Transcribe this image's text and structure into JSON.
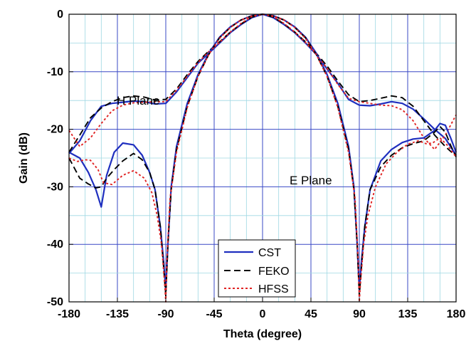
{
  "chart_data": {
    "type": "line",
    "title": "",
    "xlabel": "Theta (degree)",
    "ylabel": "Gain (dB)",
    "xlim": [
      -180,
      180
    ],
    "ylim": [
      -50,
      0
    ],
    "xticks": [
      -180,
      -135,
      -90,
      -45,
      0,
      45,
      90,
      135,
      180
    ],
    "yticks": [
      0,
      -10,
      -20,
      -30,
      -40,
      -50
    ],
    "xtick_labels": [
      "-180",
      "-135",
      "-90",
      "-45",
      "0",
      "45",
      "90",
      "135",
      "180"
    ],
    "ytick_labels": [
      "0",
      "-10",
      "-20",
      "-30",
      "-40",
      "-50"
    ],
    "grid": true,
    "legend_position": "bottom-center",
    "annotations": [
      "H Plane",
      "E Plane"
    ],
    "series": [
      {
        "name": "CST",
        "plane": "H Plane",
        "color": "#1f2fbf",
        "style": "solid",
        "x": [
          -180,
          -170,
          -160,
          -150,
          -140,
          -130,
          -120,
          -110,
          -100,
          -90,
          -80,
          -70,
          -60,
          -50,
          -40,
          -30,
          -20,
          -10,
          0,
          10,
          20,
          30,
          40,
          50,
          60,
          70,
          80,
          90,
          100,
          110,
          120,
          130,
          140,
          150,
          160,
          170,
          180
        ],
        "y": [
          -24.2,
          -22,
          -18.5,
          -16,
          -15.5,
          -15.3,
          -15.1,
          -15.2,
          -15.6,
          -15.5,
          -13.5,
          -11,
          -8.5,
          -6.8,
          -5,
          -3.2,
          -1.8,
          -0.6,
          0,
          -0.6,
          -1.8,
          -3.2,
          -5,
          -7,
          -9.5,
          -12,
          -14.8,
          -15.8,
          -15.9,
          -15.6,
          -15.2,
          -15.5,
          -16.5,
          -18.2,
          -20,
          -21.6,
          -24.5
        ]
      },
      {
        "name": "FEKO",
        "plane": "H Plane",
        "color": "#000000",
        "style": "dashed",
        "x": [
          -180,
          -170,
          -160,
          -150,
          -140,
          -130,
          -120,
          -110,
          -100,
          -90,
          -80,
          -70,
          -60,
          -50,
          -40,
          -30,
          -20,
          -10,
          0,
          10,
          20,
          30,
          40,
          50,
          60,
          70,
          80,
          90,
          100,
          110,
          120,
          130,
          140,
          150,
          160,
          170,
          180
        ],
        "y": [
          -24,
          -21,
          -18,
          -16.3,
          -15.2,
          -14.5,
          -14.2,
          -14.4,
          -14.9,
          -14.8,
          -13,
          -10.5,
          -8.2,
          -6.4,
          -4.8,
          -3.1,
          -1.7,
          -0.5,
          0,
          -0.5,
          -1.7,
          -3.1,
          -4.8,
          -6.8,
          -9,
          -11.6,
          -14,
          -15.2,
          -15,
          -14.6,
          -14.2,
          -14.5,
          -16,
          -18.5,
          -21,
          -23,
          -24.7
        ]
      },
      {
        "name": "HFSS",
        "plane": "H Plane",
        "color": "#e02424",
        "style": "dotted",
        "x": [
          -180,
          -170,
          -160,
          -150,
          -140,
          -130,
          -120,
          -110,
          -100,
          -90,
          -80,
          -70,
          -60,
          -50,
          -40,
          -30,
          -20,
          -10,
          0,
          10,
          20,
          30,
          40,
          50,
          60,
          70,
          80,
          90,
          100,
          110,
          120,
          130,
          140,
          150,
          160,
          170,
          180
        ],
        "y": [
          -20.2,
          -23,
          -21.5,
          -19,
          -16.8,
          -15.8,
          -15.4,
          -15.3,
          -15.2,
          -15.2,
          -13.2,
          -10.8,
          -8.4,
          -6.5,
          -4.9,
          -3.1,
          -1.6,
          -0.4,
          0,
          -0.4,
          -1.6,
          -3.1,
          -4.9,
          -7,
          -9.4,
          -12.2,
          -14.6,
          -15.2,
          -15.5,
          -15.8,
          -15.9,
          -16.6,
          -18.5,
          -21.5,
          -23.5,
          -21,
          -17.5
        ]
      },
      {
        "name": "CST",
        "plane": "E Plane",
        "color": "#1f2fbf",
        "style": "solid",
        "x": [
          -180,
          -170,
          -162,
          -155,
          -150,
          -145,
          -138,
          -130,
          -120,
          -112,
          -105,
          -100,
          -95,
          -92,
          -90,
          -88,
          -85,
          -80,
          -70,
          -60,
          -50,
          -40,
          -30,
          -20,
          -10,
          0,
          10,
          20,
          30,
          40,
          50,
          60,
          70,
          80,
          85,
          88,
          90,
          92,
          95,
          100,
          110,
          120,
          130,
          140,
          150,
          160,
          165,
          170,
          175,
          180
        ],
        "y": [
          -24,
          -25,
          -27.5,
          -30.5,
          -33.5,
          -28,
          -24,
          -22.4,
          -22.7,
          -24.5,
          -27.5,
          -30.5,
          -37,
          -43,
          -48,
          -40,
          -30,
          -23,
          -15.5,
          -10.5,
          -6.8,
          -4,
          -2.2,
          -1,
          -0.25,
          0,
          -0.25,
          -1,
          -2.2,
          -4,
          -6.8,
          -10.5,
          -15.5,
          -23,
          -30,
          -40,
          -48,
          -43,
          -37,
          -30.5,
          -25.5,
          -23.5,
          -22.3,
          -21.7,
          -21.5,
          -20.2,
          -19,
          -19.3,
          -21.5,
          -24
        ]
      },
      {
        "name": "FEKO",
        "plane": "E Plane",
        "color": "#000000",
        "style": "dashed",
        "x": [
          -180,
          -170,
          -162,
          -155,
          -150,
          -145,
          -138,
          -130,
          -120,
          -112,
          -105,
          -100,
          -95,
          -92,
          -90,
          -88,
          -85,
          -80,
          -70,
          -60,
          -50,
          -40,
          -30,
          -20,
          -10,
          0,
          10,
          20,
          30,
          40,
          50,
          60,
          70,
          80,
          85,
          88,
          90,
          92,
          95,
          100,
          110,
          120,
          130,
          140,
          150,
          160,
          165,
          170,
          175,
          180
        ],
        "y": [
          -25,
          -28.5,
          -29.5,
          -30.2,
          -30,
          -28.5,
          -27,
          -25.5,
          -24.2,
          -25.3,
          -27.5,
          -30.5,
          -37,
          -44,
          -49,
          -40,
          -30.5,
          -23.5,
          -16,
          -10.8,
          -7,
          -4.1,
          -2.3,
          -1,
          -0.3,
          0,
          -0.3,
          -1,
          -2.3,
          -4.1,
          -7,
          -10.8,
          -16,
          -23.5,
          -30.5,
          -40,
          -49,
          -44,
          -37,
          -30.5,
          -26.5,
          -24.5,
          -23.2,
          -22.5,
          -22,
          -20.5,
          -19.5,
          -20.5,
          -22.8,
          -24.8
        ]
      },
      {
        "name": "HFSS",
        "plane": "E Plane",
        "color": "#e02424",
        "style": "dotted",
        "x": [
          -180,
          -172,
          -165,
          -160,
          -153,
          -148,
          -140,
          -130,
          -120,
          -110,
          -103,
          -98,
          -94,
          -91,
          -90,
          -89,
          -86,
          -80,
          -70,
          -60,
          -50,
          -40,
          -30,
          -20,
          -10,
          0,
          10,
          20,
          30,
          40,
          50,
          60,
          70,
          80,
          86,
          89,
          90,
          91,
          94,
          98,
          105,
          115,
          125,
          135,
          145,
          152,
          158,
          165,
          172,
          180
        ],
        "y": [
          -25,
          -25.6,
          -25.3,
          -25.4,
          -27,
          -29.3,
          -29.6,
          -28,
          -27.2,
          -28.5,
          -31,
          -35,
          -40,
          -47,
          -50,
          -43,
          -32,
          -24,
          -16.2,
          -10.8,
          -7,
          -4.2,
          -2.3,
          -1,
          -0.3,
          0,
          -0.3,
          -1,
          -2.3,
          -4.2,
          -7,
          -10.8,
          -16.2,
          -24,
          -32,
          -43,
          -50,
          -47,
          -40,
          -35,
          -30,
          -26,
          -24,
          -22.6,
          -22,
          -22.5,
          -22.4,
          -21.5,
          -22.8,
          -24.8
        ]
      }
    ]
  }
}
